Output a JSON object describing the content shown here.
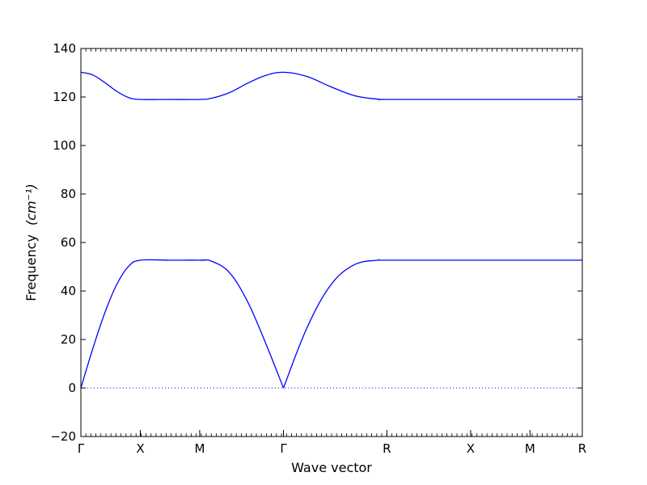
{
  "chart_data": {
    "type": "line",
    "title": "",
    "xlabel": "Wave vector",
    "ylabel": "Frequency",
    "ylabel_unit": "(cm⁻¹)",
    "ylim": [
      -20,
      140
    ],
    "yticks": [
      -20,
      0,
      20,
      40,
      60,
      80,
      100,
      120,
      140
    ],
    "xlim": [
      0,
      8.44
    ],
    "xticks": [
      {
        "label": "Γ",
        "x": 0
      },
      {
        "label": "X",
        "x": 1
      },
      {
        "label": "M",
        "x": 2
      },
      {
        "label": "Γ",
        "x": 3.41
      },
      {
        "label": "R",
        "x": 5.15
      },
      {
        "label": "X",
        "x": 6.56
      },
      {
        "label": "M",
        "x": 7.56
      },
      {
        "label": "R",
        "x": 8.44
      }
    ],
    "zero_line": {
      "y": 0,
      "style": "dotted"
    },
    "series": [
      {
        "values_x": [
          0,
          0.2,
          0.4,
          0.6,
          0.8,
          1.0,
          1.5,
          2.0,
          2.2,
          2.5,
          2.8,
          3.1,
          3.41,
          3.8,
          4.2,
          4.6,
          5.0,
          5.15,
          6.56,
          7.56,
          8.44
        ],
        "values_y": [
          0,
          16.2,
          30.8,
          42.5,
          50.1,
          52.7,
          52.7,
          52.7,
          52.3,
          47.6,
          35.9,
          19.1,
          0,
          24.5,
          42.3,
          50.8,
          52.7,
          52.7,
          52.7,
          52.7,
          52.7
        ]
      },
      {
        "values_x": [
          0,
          0.2,
          0.4,
          0.6,
          0.8,
          1.0,
          1.5,
          2.0,
          2.2,
          2.5,
          2.8,
          3.1,
          3.41,
          3.8,
          4.2,
          4.6,
          5.0,
          5.15,
          6.56,
          7.56,
          8.44
        ],
        "values_y": [
          130.2,
          129.1,
          126.0,
          122.4,
          119.8,
          119.0,
          119.0,
          119.0,
          119.5,
          121.8,
          125.6,
          128.8,
          130.2,
          128.5,
          124.3,
          120.6,
          119.1,
          119.0,
          119.0,
          119.0,
          119.0
        ]
      }
    ],
    "colors": {
      "series": "#0000ff",
      "axes": "#000000",
      "zero_line": "#0000ff"
    }
  }
}
